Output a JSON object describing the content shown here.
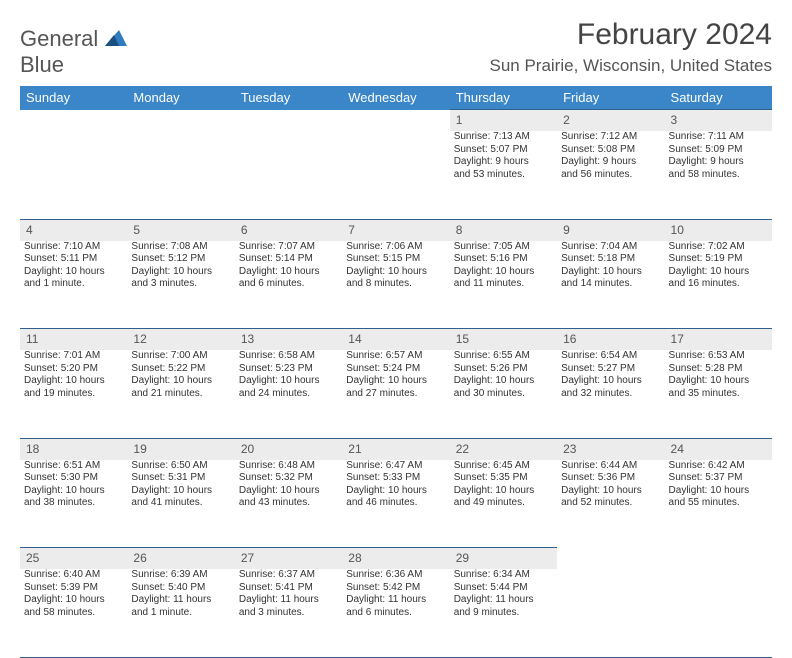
{
  "logo": {
    "word1": "General",
    "word2": "Blue"
  },
  "title": "February 2024",
  "location": "Sun Prairie, Wisconsin, United States",
  "colors": {
    "header_bg": "#3a86c8",
    "header_text": "#ffffff",
    "daynum_bg": "#ececec",
    "rule": "#2f5f8a",
    "logo_accent": "#2f7bbf",
    "text": "#333333"
  },
  "day_headers": [
    "Sunday",
    "Monday",
    "Tuesday",
    "Wednesday",
    "Thursday",
    "Friday",
    "Saturday"
  ],
  "weeks": [
    [
      null,
      null,
      null,
      null,
      {
        "n": "1",
        "sr": "Sunrise: 7:13 AM",
        "ss": "Sunset: 5:07 PM",
        "d1": "Daylight: 9 hours",
        "d2": "and 53 minutes."
      },
      {
        "n": "2",
        "sr": "Sunrise: 7:12 AM",
        "ss": "Sunset: 5:08 PM",
        "d1": "Daylight: 9 hours",
        "d2": "and 56 minutes."
      },
      {
        "n": "3",
        "sr": "Sunrise: 7:11 AM",
        "ss": "Sunset: 5:09 PM",
        "d1": "Daylight: 9 hours",
        "d2": "and 58 minutes."
      }
    ],
    [
      {
        "n": "4",
        "sr": "Sunrise: 7:10 AM",
        "ss": "Sunset: 5:11 PM",
        "d1": "Daylight: 10 hours",
        "d2": "and 1 minute."
      },
      {
        "n": "5",
        "sr": "Sunrise: 7:08 AM",
        "ss": "Sunset: 5:12 PM",
        "d1": "Daylight: 10 hours",
        "d2": "and 3 minutes."
      },
      {
        "n": "6",
        "sr": "Sunrise: 7:07 AM",
        "ss": "Sunset: 5:14 PM",
        "d1": "Daylight: 10 hours",
        "d2": "and 6 minutes."
      },
      {
        "n": "7",
        "sr": "Sunrise: 7:06 AM",
        "ss": "Sunset: 5:15 PM",
        "d1": "Daylight: 10 hours",
        "d2": "and 8 minutes."
      },
      {
        "n": "8",
        "sr": "Sunrise: 7:05 AM",
        "ss": "Sunset: 5:16 PM",
        "d1": "Daylight: 10 hours",
        "d2": "and 11 minutes."
      },
      {
        "n": "9",
        "sr": "Sunrise: 7:04 AM",
        "ss": "Sunset: 5:18 PM",
        "d1": "Daylight: 10 hours",
        "d2": "and 14 minutes."
      },
      {
        "n": "10",
        "sr": "Sunrise: 7:02 AM",
        "ss": "Sunset: 5:19 PM",
        "d1": "Daylight: 10 hours",
        "d2": "and 16 minutes."
      }
    ],
    [
      {
        "n": "11",
        "sr": "Sunrise: 7:01 AM",
        "ss": "Sunset: 5:20 PM",
        "d1": "Daylight: 10 hours",
        "d2": "and 19 minutes."
      },
      {
        "n": "12",
        "sr": "Sunrise: 7:00 AM",
        "ss": "Sunset: 5:22 PM",
        "d1": "Daylight: 10 hours",
        "d2": "and 21 minutes."
      },
      {
        "n": "13",
        "sr": "Sunrise: 6:58 AM",
        "ss": "Sunset: 5:23 PM",
        "d1": "Daylight: 10 hours",
        "d2": "and 24 minutes."
      },
      {
        "n": "14",
        "sr": "Sunrise: 6:57 AM",
        "ss": "Sunset: 5:24 PM",
        "d1": "Daylight: 10 hours",
        "d2": "and 27 minutes."
      },
      {
        "n": "15",
        "sr": "Sunrise: 6:55 AM",
        "ss": "Sunset: 5:26 PM",
        "d1": "Daylight: 10 hours",
        "d2": "and 30 minutes."
      },
      {
        "n": "16",
        "sr": "Sunrise: 6:54 AM",
        "ss": "Sunset: 5:27 PM",
        "d1": "Daylight: 10 hours",
        "d2": "and 32 minutes."
      },
      {
        "n": "17",
        "sr": "Sunrise: 6:53 AM",
        "ss": "Sunset: 5:28 PM",
        "d1": "Daylight: 10 hours",
        "d2": "and 35 minutes."
      }
    ],
    [
      {
        "n": "18",
        "sr": "Sunrise: 6:51 AM",
        "ss": "Sunset: 5:30 PM",
        "d1": "Daylight: 10 hours",
        "d2": "and 38 minutes."
      },
      {
        "n": "19",
        "sr": "Sunrise: 6:50 AM",
        "ss": "Sunset: 5:31 PM",
        "d1": "Daylight: 10 hours",
        "d2": "and 41 minutes."
      },
      {
        "n": "20",
        "sr": "Sunrise: 6:48 AM",
        "ss": "Sunset: 5:32 PM",
        "d1": "Daylight: 10 hours",
        "d2": "and 43 minutes."
      },
      {
        "n": "21",
        "sr": "Sunrise: 6:47 AM",
        "ss": "Sunset: 5:33 PM",
        "d1": "Daylight: 10 hours",
        "d2": "and 46 minutes."
      },
      {
        "n": "22",
        "sr": "Sunrise: 6:45 AM",
        "ss": "Sunset: 5:35 PM",
        "d1": "Daylight: 10 hours",
        "d2": "and 49 minutes."
      },
      {
        "n": "23",
        "sr": "Sunrise: 6:44 AM",
        "ss": "Sunset: 5:36 PM",
        "d1": "Daylight: 10 hours",
        "d2": "and 52 minutes."
      },
      {
        "n": "24",
        "sr": "Sunrise: 6:42 AM",
        "ss": "Sunset: 5:37 PM",
        "d1": "Daylight: 10 hours",
        "d2": "and 55 minutes."
      }
    ],
    [
      {
        "n": "25",
        "sr": "Sunrise: 6:40 AM",
        "ss": "Sunset: 5:39 PM",
        "d1": "Daylight: 10 hours",
        "d2": "and 58 minutes."
      },
      {
        "n": "26",
        "sr": "Sunrise: 6:39 AM",
        "ss": "Sunset: 5:40 PM",
        "d1": "Daylight: 11 hours",
        "d2": "and 1 minute."
      },
      {
        "n": "27",
        "sr": "Sunrise: 6:37 AM",
        "ss": "Sunset: 5:41 PM",
        "d1": "Daylight: 11 hours",
        "d2": "and 3 minutes."
      },
      {
        "n": "28",
        "sr": "Sunrise: 6:36 AM",
        "ss": "Sunset: 5:42 PM",
        "d1": "Daylight: 11 hours",
        "d2": "and 6 minutes."
      },
      {
        "n": "29",
        "sr": "Sunrise: 6:34 AM",
        "ss": "Sunset: 5:44 PM",
        "d1": "Daylight: 11 hours",
        "d2": "and 9 minutes."
      },
      null,
      null
    ]
  ]
}
